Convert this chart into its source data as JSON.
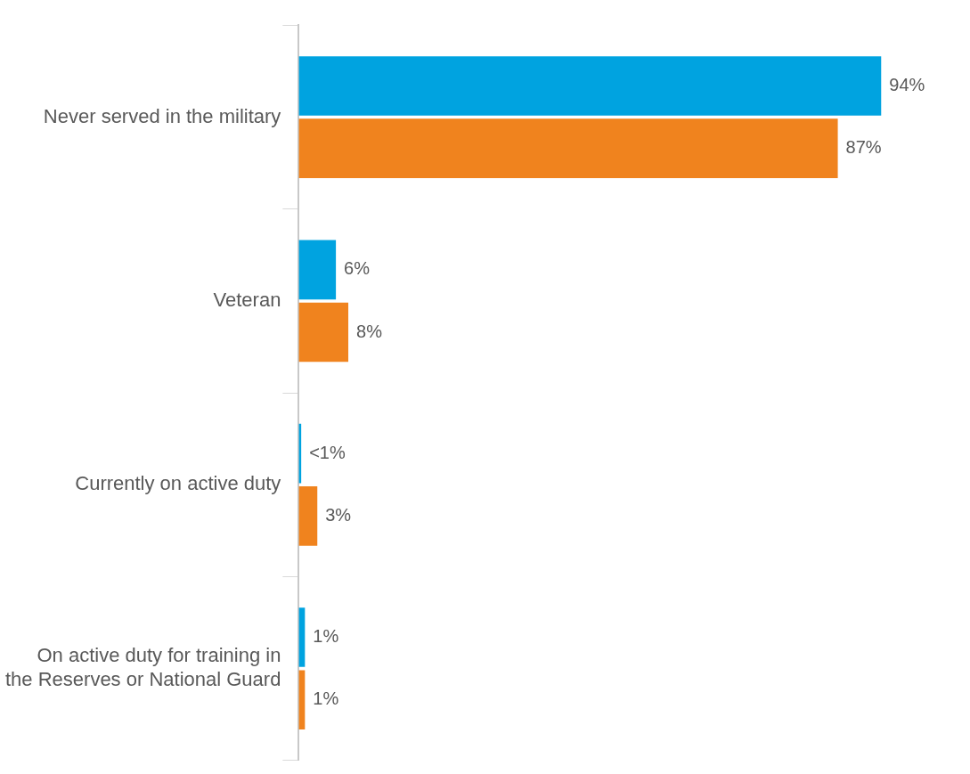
{
  "chart_data": {
    "type": "bar",
    "orientation": "horizontal",
    "categories": [
      "Never served in the military",
      "Veteran",
      "Currently on active duty",
      "On active duty for training in the Reserves or National Guard"
    ],
    "series": [
      {
        "color": "#00a3e0",
        "values": [
          94,
          6,
          0.4,
          1
        ],
        "value_labels": [
          "94%",
          "6%",
          "<1%",
          "1%"
        ]
      },
      {
        "color": "#f0831e",
        "values": [
          87,
          8,
          3,
          1
        ],
        "value_labels": [
          "87%",
          "8%",
          "3%",
          "1%"
        ]
      }
    ],
    "tick_labels": "y"
  }
}
